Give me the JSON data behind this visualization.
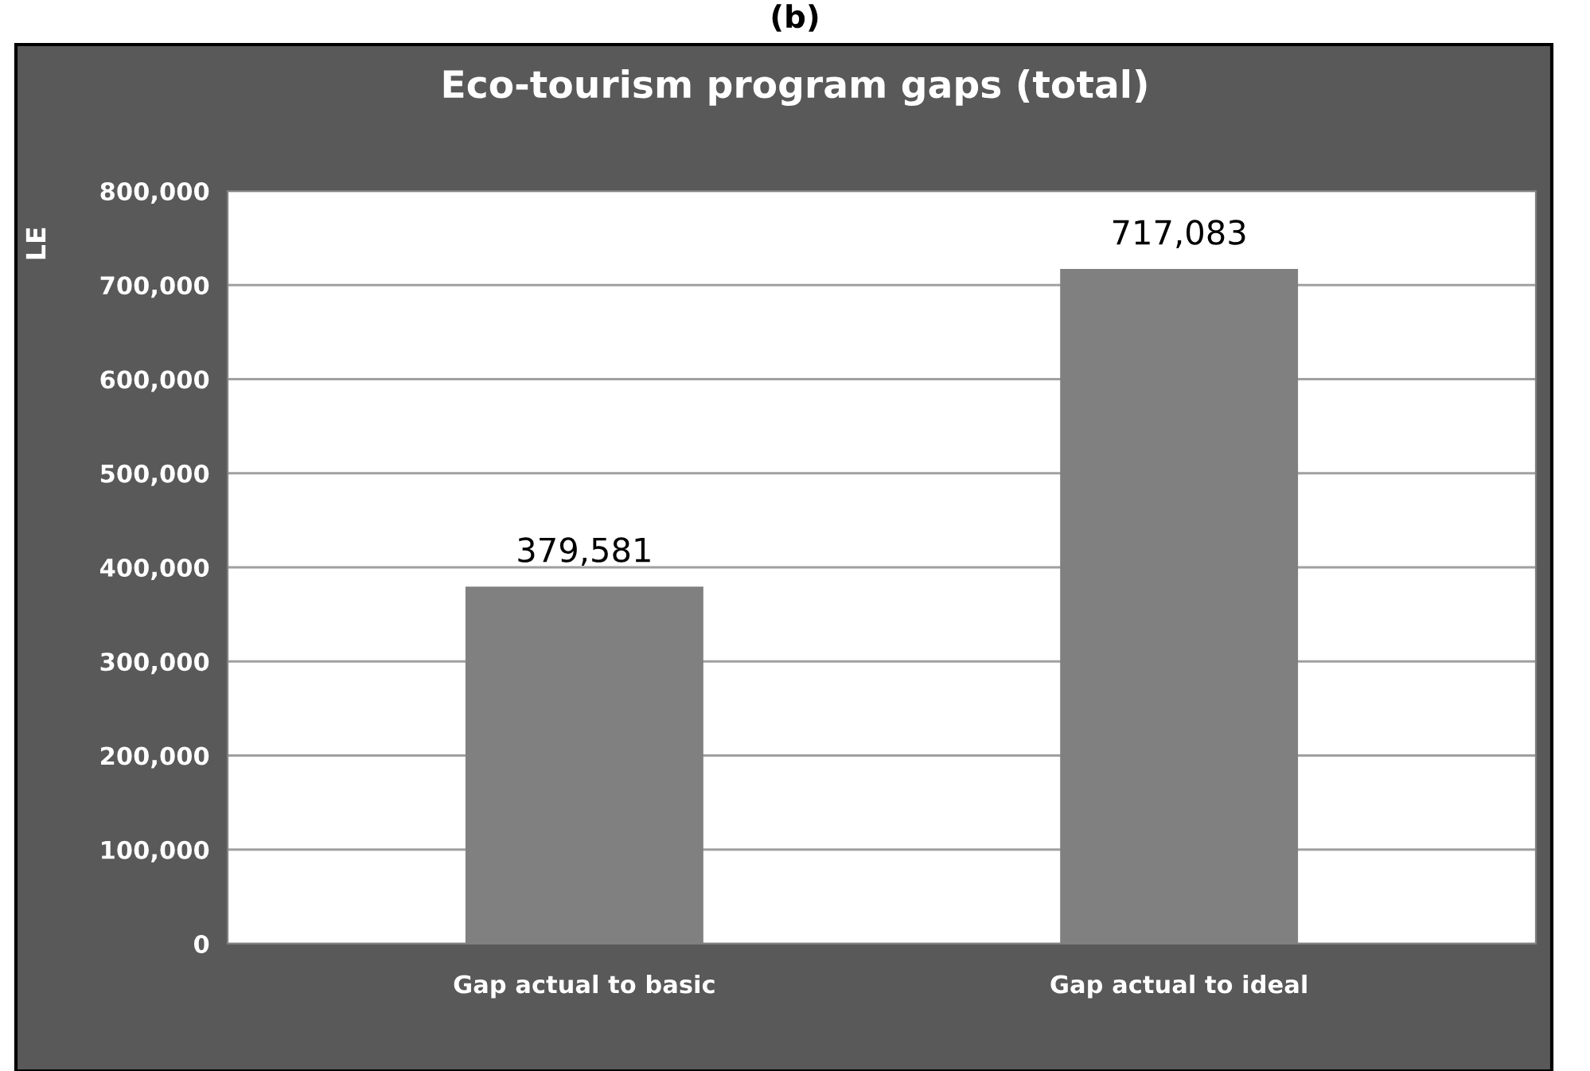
{
  "chart_data": {
    "type": "bar",
    "title": "Eco-tourism program gaps (total)",
    "ylabel": "LE",
    "annotations": [
      "(b)"
    ],
    "categories": [
      "Gap actual to basic",
      "Gap actual to ideal"
    ],
    "values": [
      379581,
      717083
    ],
    "color": "#808080",
    "value_labels": [
      "379,581",
      "717,083"
    ],
    "ylim": [
      0,
      800000
    ],
    "yticks": [
      {
        "value": 0,
        "label": "0"
      },
      {
        "value": 100000,
        "label": "100,000"
      },
      {
        "value": 200000,
        "label": "200,000"
      },
      {
        "value": 300000,
        "label": "300,000"
      },
      {
        "value": 400000,
        "label": "400,000"
      },
      {
        "value": 500000,
        "label": "500,000"
      },
      {
        "value": 600000,
        "label": "600,000"
      },
      {
        "value": 700000,
        "label": "700,000"
      },
      {
        "value": 800000,
        "label": "800,000"
      }
    ],
    "grid": "y",
    "legend": false
  }
}
